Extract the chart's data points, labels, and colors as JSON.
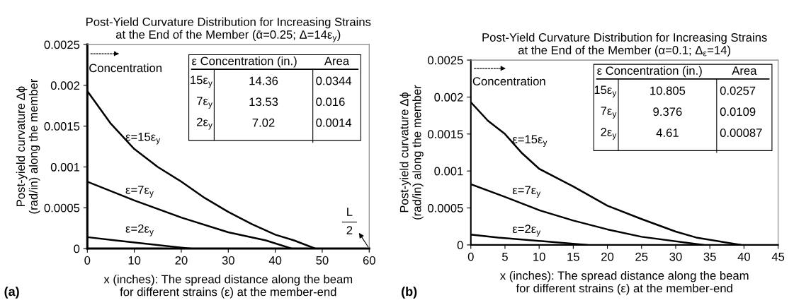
{
  "chart_data": [
    {
      "type": "line",
      "title": "Post-Yield Curvature Distribution for Increasing Strains\nat the End of the Member (ᾱ=0.25; Δ=14ε$_{y}$)",
      "xlabel": "x (inches): The spread distance along the beam\nfor different strains (ε) at the member-end",
      "ylabel": "Post-yield curvature Δϕ\n(rad/in) along the member",
      "xlim": [
        0,
        60
      ],
      "ylim": [
        0,
        0.0025
      ],
      "xticks": [
        0,
        10,
        20,
        30,
        40,
        50,
        60
      ],
      "yticks": [
        0,
        0.0005,
        0.001,
        0.0015,
        0.002,
        0.0025
      ],
      "grid": false,
      "series": [
        {
          "color": "#000000",
          "x": [
            0,
            5,
            10,
            15,
            20,
            25,
            30,
            35,
            40,
            44,
            48.5
          ],
          "values": [
            0.00193,
            0.00153,
            0.00122,
            0.001,
            0.00082,
            0.00062,
            0.00045,
            0.0003,
            0.00017,
            0.0001,
            0
          ]
        },
        {
          "color": "#000000",
          "x": [
            0,
            10,
            20,
            30,
            38,
            43.5
          ],
          "values": [
            0.00082,
            0.00059,
            0.00038,
            0.0002,
            0.0001,
            0
          ]
        },
        {
          "color": "#000000",
          "x": [
            0,
            6,
            22
          ],
          "values": [
            0.00014,
            0.0001,
            0
          ]
        }
      ],
      "annotations": [
        "ε Concentration (in.)",
        "Area",
        "15ε$_{y}$",
        "14.36",
        "0.0344",
        "7ε$_{y}$",
        "13.53",
        "0.016",
        "2ε$_{y}$",
        "7.02",
        "0.0014",
        "Concentration",
        "ε=15ε$_{y}$",
        "ε=7ε$_{y}$",
        "ε=2ε$_{y}$",
        "(a)",
        "L",
        "2"
      ]
    },
    {
      "type": "line",
      "title": "Post-Yield Curvature Distribution for Increasing Strains\nat the End of the Member (α=0.1; Δ$_{ε}$=14)",
      "xlabel": "x (inches): The spread distance along the beam\nfor different strains (ε) at the member-end",
      "ylabel": "Post-yield curvature Δϕ\n(rad/in) along the member",
      "xlim": [
        0,
        45
      ],
      "ylim": [
        0,
        0.0025
      ],
      "xticks": [
        0,
        5,
        10,
        15,
        20,
        25,
        30,
        35,
        40,
        45
      ],
      "yticks": [
        0,
        0.0005,
        0.001,
        0.0015,
        0.002,
        0.0025
      ],
      "grid": false,
      "series": [
        {
          "color": "#000000",
          "x": [
            0,
            2.5,
            5,
            7.5,
            10,
            15,
            20,
            25,
            30,
            33,
            39.5
          ],
          "values": [
            0.00193,
            0.00168,
            0.0015,
            0.00124,
            0.00103,
            0.00079,
            0.00053,
            0.00035,
            0.00018,
            0.0001,
            0
          ]
        },
        {
          "color": "#000000",
          "x": [
            0,
            5,
            10,
            15,
            20,
            25,
            34
          ],
          "values": [
            0.00082,
            0.00065,
            0.00047,
            0.00033,
            0.00021,
            0.00011,
            0
          ]
        },
        {
          "color": "#000000",
          "x": [
            0,
            4,
            17
          ],
          "values": [
            0.00014,
            0.0001,
            0
          ]
        }
      ],
      "annotations": [
        "ε Concentration (in.)",
        "Area",
        "15ε$_{y}$",
        "10.805",
        "0.0257",
        "7ε$_{y}$",
        "9.376",
        "0.0109",
        "2ε$_{y}$",
        "4.61",
        "0.00087",
        "Concentration",
        "ε=15ε$_{y}$",
        "ε=7ε$_{y}$",
        "ε=2ε$_{y}$",
        "(b)"
      ]
    }
  ]
}
